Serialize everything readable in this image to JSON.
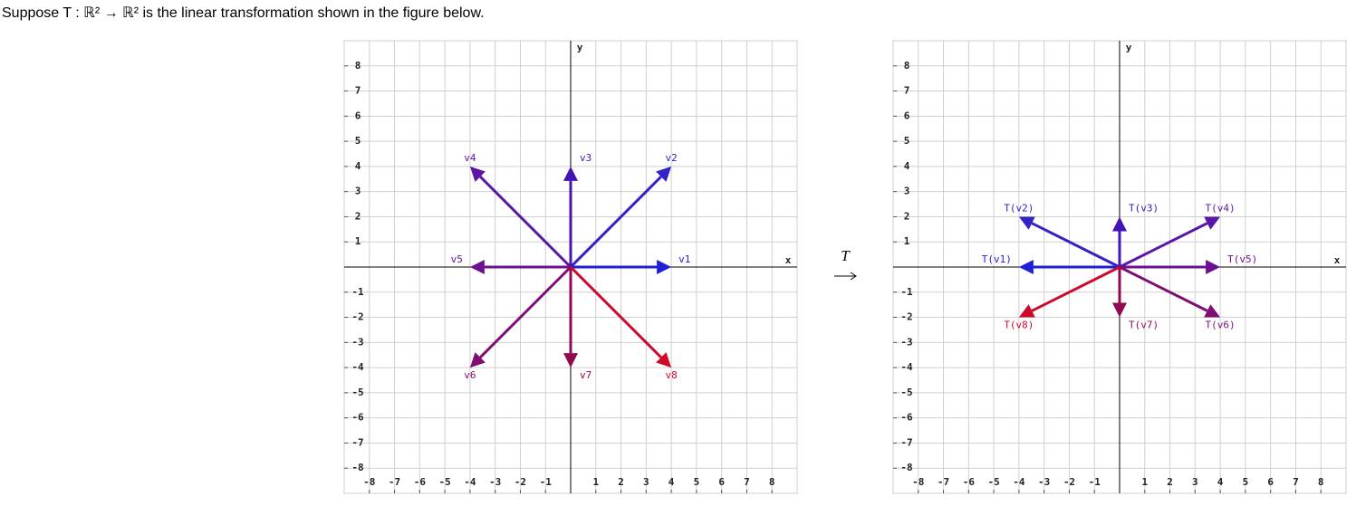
{
  "intro": "Suppose T : ℝ² → ℝ² is the linear transformation shown in the figure below.",
  "map_symbol": "T",
  "graphs": [
    {
      "x_label": "x",
      "y_label": "y",
      "xlim": [
        -9,
        9
      ],
      "ylim": [
        -9,
        9
      ],
      "xticks": [
        -8,
        -7,
        -6,
        -5,
        -4,
        -3,
        -2,
        -1,
        1,
        2,
        3,
        4,
        5,
        6,
        7,
        8
      ],
      "yticks": [
        -8,
        -7,
        -6,
        -5,
        -4,
        -3,
        -2,
        -1,
        1,
        2,
        3,
        4,
        5,
        6,
        7,
        8
      ],
      "vectors": [
        {
          "label": "v1",
          "x": 4,
          "y": 0,
          "color": "#1f1fd6"
        },
        {
          "label": "v2",
          "x": 4,
          "y": 4,
          "color": "#3322c4"
        },
        {
          "label": "v3",
          "x": 0,
          "y": 4,
          "color": "#4414b4"
        },
        {
          "label": "v4",
          "x": -4,
          "y": 4,
          "color": "#5a16a4"
        },
        {
          "label": "v5",
          "x": -4,
          "y": 0,
          "color": "#6c1290"
        },
        {
          "label": "v6",
          "x": -4,
          "y": -4,
          "color": "#7e0e74"
        },
        {
          "label": "v7",
          "x": 0,
          "y": -4,
          "color": "#900a50"
        },
        {
          "label": "v8",
          "x": 4,
          "y": -4,
          "color": "#cc0a2a"
        }
      ]
    },
    {
      "x_label": "x",
      "y_label": "y",
      "xlim": [
        -9,
        9
      ],
      "ylim": [
        -9,
        9
      ],
      "xticks": [
        -8,
        -7,
        -6,
        -5,
        -4,
        -3,
        -2,
        -1,
        1,
        2,
        3,
        4,
        5,
        6,
        7,
        8
      ],
      "yticks": [
        -8,
        -7,
        -6,
        -5,
        -4,
        -3,
        -2,
        -1,
        1,
        2,
        3,
        4,
        5,
        6,
        7,
        8
      ],
      "vectors": [
        {
          "label": "T(v1)",
          "x": -4,
          "y": 0,
          "color": "#1f1fd6"
        },
        {
          "label": "T(v2)",
          "x": -4,
          "y": 2,
          "color": "#3322c4"
        },
        {
          "label": "T(v3)",
          "x": 0,
          "y": 2,
          "color": "#4414b4"
        },
        {
          "label": "T(v4)",
          "x": 4,
          "y": 2,
          "color": "#5a16a4"
        },
        {
          "label": "T(v5)",
          "x": 4,
          "y": 0,
          "color": "#6c1290"
        },
        {
          "label": "T(v6)",
          "x": 4,
          "y": -2,
          "color": "#7e0e74"
        },
        {
          "label": "T(v7)",
          "x": 0,
          "y": -2,
          "color": "#900a50"
        },
        {
          "label": "T(v8)",
          "x": -4,
          "y": -2,
          "color": "#cc0a2a"
        }
      ]
    }
  ]
}
